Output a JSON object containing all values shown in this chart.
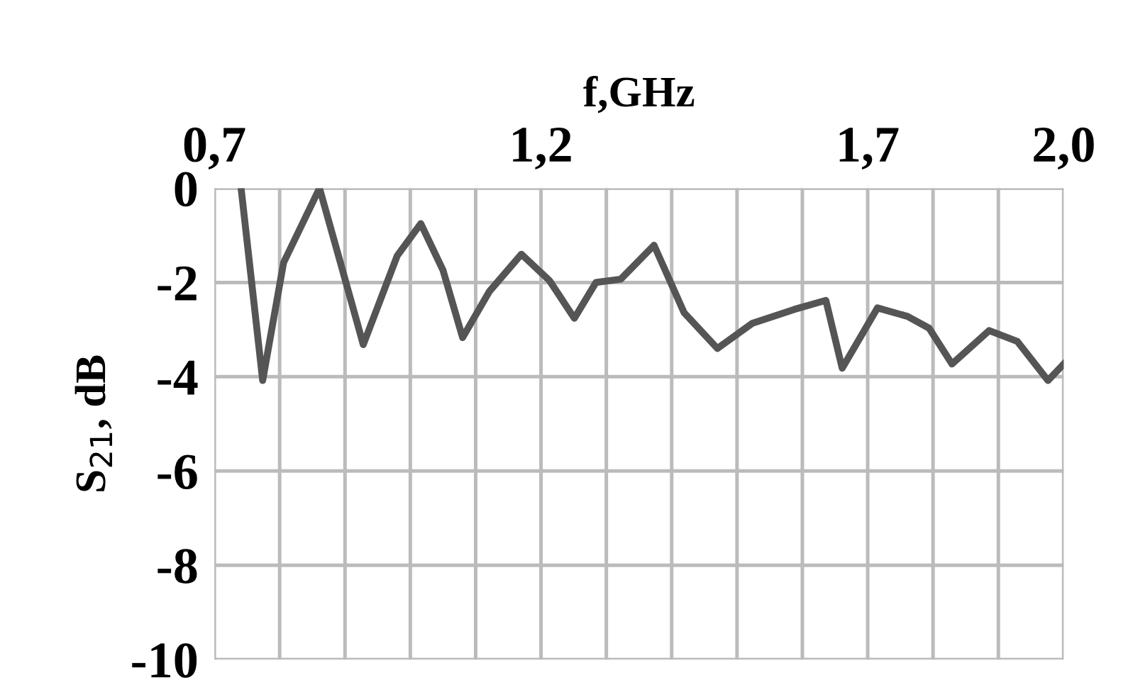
{
  "chart_data": {
    "type": "line",
    "xlabel": "f,GHz",
    "ylabel": "S$_{21}$, dB",
    "x": [
      0.741,
      0.774,
      0.806,
      0.861,
      0.893,
      0.928,
      0.98,
      1.016,
      1.05,
      1.08,
      1.121,
      1.17,
      1.213,
      1.251,
      1.284,
      1.322,
      1.373,
      1.419,
      1.47,
      1.523,
      1.588,
      1.636,
      1.661,
      1.715,
      1.761,
      1.794,
      1.829,
      1.886,
      1.929,
      1.976,
      2.0
    ],
    "series": [
      {
        "color": "#555555",
        "values": [
          0,
          -4.08,
          -1.58,
          0,
          -1.58,
          -3.32,
          -1.43,
          -0.75,
          -1.74,
          -3.17,
          -2.19,
          -1.4,
          -1.96,
          -2.76,
          -2.0,
          -1.93,
          -1.21,
          -2.64,
          -3.4,
          -2.87,
          -2.57,
          -2.38,
          -3.82,
          -2.54,
          -2.72,
          -2.97,
          -3.73,
          -3.02,
          -3.25,
          -4.08,
          -3.73
        ]
      }
    ],
    "xlim": [
      0.7,
      2.0
    ],
    "xticks": [
      {
        "value": 0.7,
        "label": "0,7"
      },
      {
        "value": 0.8,
        "label": null
      },
      {
        "value": 0.9,
        "label": null
      },
      {
        "value": 1.0,
        "label": null
      },
      {
        "value": 1.1,
        "label": null
      },
      {
        "value": 1.2,
        "label": "1,2"
      },
      {
        "value": 1.3,
        "label": null
      },
      {
        "value": 1.4,
        "label": null
      },
      {
        "value": 1.5,
        "label": null
      },
      {
        "value": 1.6,
        "label": null
      },
      {
        "value": 1.7,
        "label": "1,7"
      },
      {
        "value": 1.8,
        "label": null
      },
      {
        "value": 1.9,
        "label": null
      },
      {
        "value": 2.0,
        "label": "2,0"
      }
    ],
    "ylim": [
      -10,
      0
    ],
    "yticks": [
      0,
      -2,
      -4,
      -6,
      -8,
      -10
    ],
    "grid": true,
    "marker": "none",
    "line_style": "solid",
    "legend": false
  }
}
